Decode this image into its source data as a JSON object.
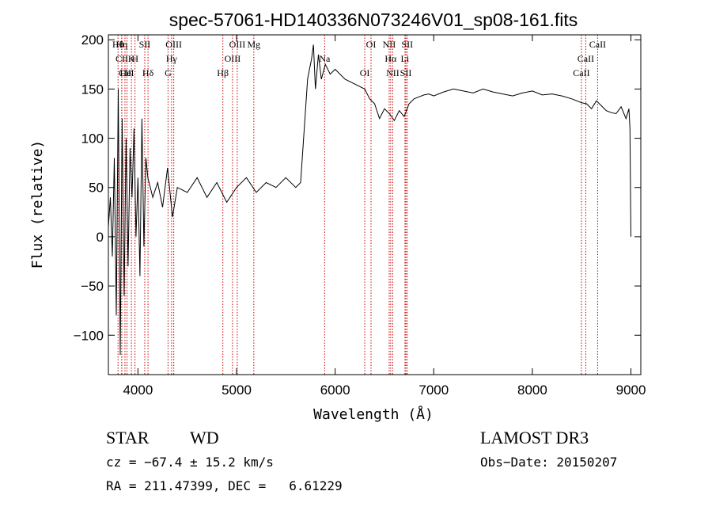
{
  "chart_data": {
    "type": "line",
    "title": "spec-57061-HD140336N073246V01_sp08-161.fits",
    "xlabel": "Wavelength (Å)",
    "ylabel": "Flux (relative)",
    "xlim": [
      3700,
      9100
    ],
    "ylim": [
      -140,
      205
    ],
    "xticks": [
      {
        "v": 4000,
        "t": "4000"
      },
      {
        "v": 5000,
        "t": "5000"
      },
      {
        "v": 6000,
        "t": "6000"
      },
      {
        "v": 7000,
        "t": "7000"
      },
      {
        "v": 8000,
        "t": "8000"
      },
      {
        "v": 9000,
        "t": "9000"
      }
    ],
    "yticks": [
      {
        "v": -100,
        "t": "−100"
      },
      {
        "v": -50,
        "t": "−50"
      },
      {
        "v": 0,
        "t": "0"
      },
      {
        "v": 50,
        "t": "50"
      },
      {
        "v": 100,
        "t": "100"
      },
      {
        "v": 150,
        "t": "150"
      },
      {
        "v": 200,
        "t": "200"
      }
    ],
    "grid": false,
    "series": [
      {
        "x": [
          3700,
          3720,
          3740,
          3760,
          3780,
          3800,
          3820,
          3840,
          3860,
          3880,
          3900,
          3920,
          3940,
          3960,
          3980,
          4000,
          4020,
          4040,
          4060,
          4080,
          4100,
          4150,
          4200,
          4250,
          4300,
          4350,
          4400,
          4500,
          4600,
          4700,
          4800,
          4900,
          5000,
          5100,
          5200,
          5300,
          5400,
          5500,
          5600,
          5650,
          5700,
          5720,
          5740,
          5760,
          5780,
          5800,
          5830,
          5860,
          5900,
          5950,
          6000,
          6100,
          6200,
          6300,
          6350,
          6400,
          6450,
          6500,
          6550,
          6600,
          6650,
          6700,
          6750,
          6800,
          6850,
          6900,
          6950,
          7000,
          7100,
          7200,
          7300,
          7400,
          7500,
          7600,
          7700,
          7800,
          7900,
          8000,
          8100,
          8200,
          8300,
          8400,
          8500,
          8550,
          8600,
          8650,
          8700,
          8750,
          8800,
          8850,
          8900,
          8950,
          8980,
          8990,
          9000
        ],
        "y": [
          10,
          40,
          -20,
          80,
          -80,
          150,
          -120,
          120,
          -60,
          100,
          -30,
          90,
          40,
          110,
          0,
          60,
          -40,
          120,
          -10,
          80,
          60,
          40,
          55,
          30,
          70,
          20,
          50,
          45,
          60,
          40,
          55,
          35,
          50,
          60,
          45,
          55,
          50,
          60,
          50,
          55,
          130,
          160,
          170,
          180,
          195,
          150,
          185,
          160,
          175,
          165,
          170,
          160,
          155,
          150,
          140,
          135,
          120,
          130,
          125,
          118,
          128,
          122,
          135,
          140,
          142,
          144,
          145,
          143,
          147,
          150,
          148,
          146,
          150,
          147,
          145,
          143,
          146,
          148,
          144,
          145,
          143,
          140,
          136,
          135,
          130,
          138,
          133,
          128,
          126,
          125,
          132,
          120,
          130,
          110,
          0
        ]
      }
    ],
    "line_markers": [
      {
        "name": "Hθ",
        "x": 3798
      },
      {
        "name": "K",
        "x": 3934
      },
      {
        "name": "Hδ",
        "x": 4102
      },
      {
        "name": "OIII",
        "x": 4363
      },
      {
        "name": "CII",
        "x": 3836
      },
      {
        "name": "HeI",
        "x": 3889
      },
      {
        "name": "SII",
        "x": 4069
      },
      {
        "name": "Hγ",
        "x": 4341
      },
      {
        "name": "CII",
        "x": 3868
      },
      {
        "name": "Hη",
        "x": 3835
      },
      {
        "name": "H",
        "x": 3970
      },
      {
        "name": "G",
        "x": 4305
      },
      {
        "name": "OIII",
        "x": 5007
      },
      {
        "name": "OIII",
        "x": 4959
      },
      {
        "name": "Hβ",
        "x": 4861
      },
      {
        "name": "Mg",
        "x": 5175
      },
      {
        "name": "Na",
        "x": 5893
      },
      {
        "name": "OI",
        "x": 6300
      },
      {
        "name": "OI",
        "x": 6364
      },
      {
        "name": "Hα",
        "x": 6563
      },
      {
        "name": "SII",
        "x": 6717
      },
      {
        "name": "NII",
        "x": 6548
      },
      {
        "name": "Li",
        "x": 6708
      },
      {
        "name": "NII",
        "x": 6584
      },
      {
        "name": "SII",
        "x": 6731
      },
      {
        "name": "CaII",
        "x": 8542
      },
      {
        "name": "CaII",
        "x": 8498
      },
      {
        "name": "CaII",
        "x": 8662
      }
    ]
  },
  "info": {
    "object_class": "STAR",
    "subclass": "WD",
    "survey": "LAMOST DR3",
    "redshift": "cz = −67.4 ± 15.2 km/s",
    "obs_date": "Obs−Date: 20150207",
    "coords": "RA = 211.47399, DEC =   6.61229"
  }
}
